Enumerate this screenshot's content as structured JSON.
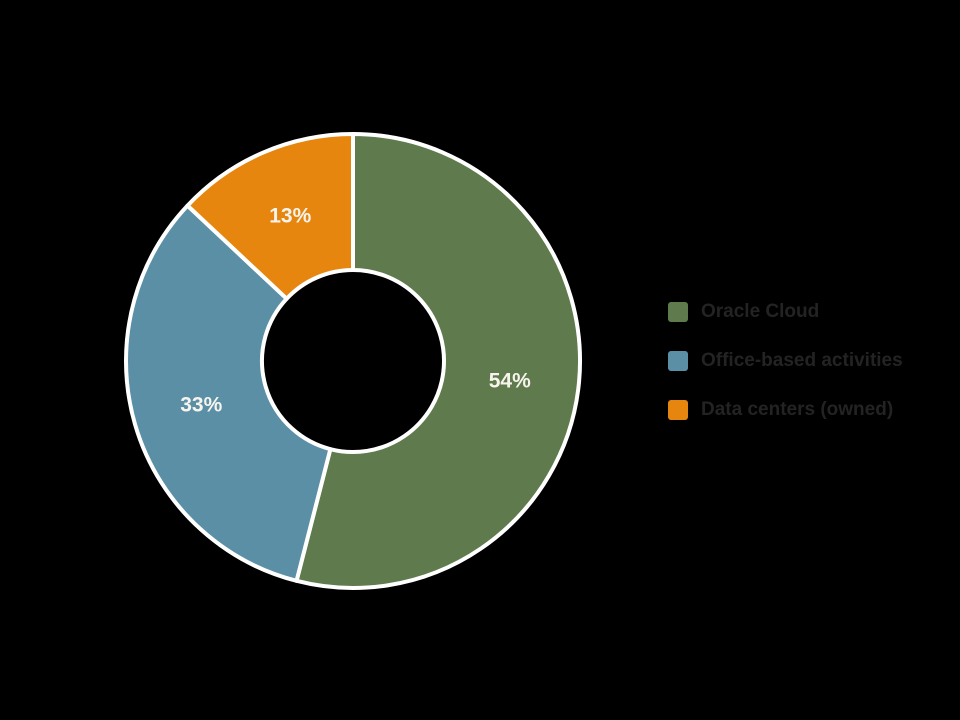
{
  "background_color": "#000000",
  "chart_data": {
    "type": "pie",
    "subtype": "donut",
    "title": "",
    "categories": [
      "Oracle Cloud",
      "Office-based activities",
      "Data centers (owned)"
    ],
    "values": [
      54,
      33,
      13
    ],
    "unit": "%",
    "slice_labels": [
      "54%",
      "33%",
      "13%"
    ],
    "colors": [
      "#5f7a4c",
      "#5b8fa6",
      "#e6860e"
    ],
    "start_angle_deg": 0,
    "direction": "clockwise",
    "grid": false,
    "legend_position": "right",
    "legend": [
      {
        "label": "Oracle Cloud",
        "color": "#5f7a4c"
      },
      {
        "label": "Office-based activities",
        "color": "#5b8fa6"
      },
      {
        "label": "Data centers (owned)",
        "color": "#e6860e"
      }
    ]
  },
  "styles": {
    "slice_label_color": "#f7f4ee",
    "legend_text_color": "#232323",
    "divider_color": "#ffffff"
  }
}
